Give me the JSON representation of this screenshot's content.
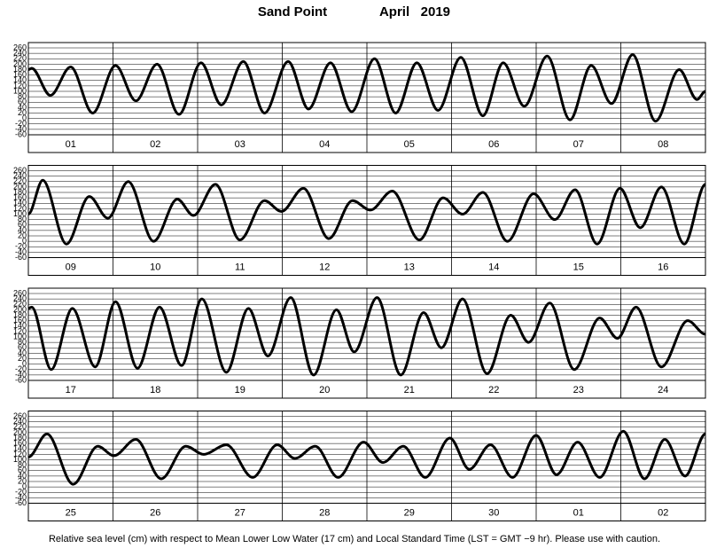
{
  "header": {
    "station": "Sand Point",
    "month": "April   2019"
  },
  "footnote": "Relative sea level (cm) with respect to Mean Lower Low Water (17 cm) and Local Standard Time (LST = GMT −9 hr). Please use with caution.",
  "chart_data": [
    {
      "type": "line",
      "categories": [
        "01",
        "02",
        "03",
        "04",
        "05",
        "06",
        "07",
        "08"
      ],
      "xlim": [
        0,
        8
      ],
      "ylim": [
        -60,
        260
      ],
      "yticks": [
        -60,
        -40,
        -20,
        0,
        20,
        40,
        60,
        80,
        100,
        120,
        140,
        160,
        180,
        200,
        220,
        240,
        260
      ],
      "grid": true,
      "color": "#000000",
      "x": [
        0,
        0.04,
        0.26,
        0.5,
        0.76,
        1.03,
        1.27,
        1.52,
        1.78,
        2.04,
        2.28,
        2.54,
        2.79,
        3.07,
        3.31,
        3.57,
        3.82,
        4.09,
        4.34,
        4.59,
        4.84,
        5.11,
        5.37,
        5.61,
        5.86,
        6.13,
        6.4,
        6.65,
        6.89,
        7.14,
        7.41,
        7.69,
        7.9,
        8
      ],
      "values": [
        180,
        185,
        85,
        190,
        20,
        195,
        65,
        200,
        15,
        205,
        50,
        210,
        20,
        210,
        35,
        205,
        25,
        220,
        20,
        205,
        30,
        225,
        10,
        205,
        45,
        230,
        -5,
        195,
        55,
        235,
        -10,
        180,
        70,
        100
      ]
    },
    {
      "type": "line",
      "categories": [
        "09",
        "10",
        "11",
        "12",
        "13",
        "14",
        "15",
        "16"
      ],
      "xlim": [
        0,
        8
      ],
      "ylim": [
        -60,
        260
      ],
      "yticks": [
        -60,
        -40,
        -20,
        0,
        20,
        40,
        60,
        80,
        100,
        120,
        140,
        160,
        180,
        200,
        220,
        240,
        260
      ],
      "grid": true,
      "color": "#000000",
      "x": [
        0,
        0.17,
        0.45,
        0.72,
        0.94,
        1.18,
        1.48,
        1.76,
        1.95,
        2.21,
        2.5,
        2.79,
        2.99,
        3.25,
        3.55,
        3.83,
        4.04,
        4.3,
        4.62,
        4.9,
        5.13,
        5.37,
        5.66,
        5.97,
        6.22,
        6.46,
        6.72,
        6.99,
        7.23,
        7.48,
        7.75,
        8
      ],
      "values": [
        100,
        225,
        -10,
        165,
        85,
        220,
        0,
        155,
        95,
        210,
        5,
        150,
        110,
        195,
        10,
        150,
        115,
        185,
        5,
        160,
        100,
        180,
        0,
        175,
        80,
        190,
        -10,
        195,
        50,
        200,
        -10,
        210
      ]
    },
    {
      "type": "line",
      "categories": [
        "17",
        "18",
        "19",
        "20",
        "21",
        "22",
        "23",
        "24"
      ],
      "xlim": [
        0,
        8
      ],
      "ylim": [
        -60,
        260
      ],
      "yticks": [
        -60,
        -40,
        -20,
        0,
        20,
        40,
        60,
        80,
        100,
        120,
        140,
        160,
        180,
        200,
        220,
        240,
        260
      ],
      "grid": true,
      "color": "#000000",
      "x": [
        0,
        0.04,
        0.27,
        0.52,
        0.79,
        1.03,
        1.29,
        1.55,
        1.81,
        2.05,
        2.34,
        2.6,
        2.83,
        3.1,
        3.37,
        3.64,
        3.85,
        4.12,
        4.4,
        4.67,
        4.88,
        5.13,
        5.42,
        5.7,
        5.91,
        6.16,
        6.45,
        6.75,
        6.96,
        7.18,
        7.48,
        7.79,
        8
      ],
      "values": [
        205,
        210,
        -20,
        205,
        -10,
        230,
        -15,
        210,
        -5,
        240,
        -30,
        205,
        30,
        245,
        -40,
        200,
        45,
        245,
        -40,
        190,
        60,
        240,
        -35,
        180,
        80,
        225,
        -20,
        170,
        95,
        210,
        -10,
        160,
        110
      ]
    },
    {
      "type": "line",
      "categories": [
        "25",
        "26",
        "27",
        "28",
        "29",
        "30",
        "01",
        "02"
      ],
      "xlim": [
        0,
        8
      ],
      "ylim": [
        -60,
        260
      ],
      "yticks": [
        -60,
        -40,
        -20,
        0,
        20,
        40,
        60,
        80,
        100,
        120,
        140,
        160,
        180,
        200,
        220,
        240,
        260
      ],
      "grid": true,
      "color": "#000000",
      "x": [
        0,
        0.22,
        0.53,
        0.82,
        1.01,
        1.27,
        1.57,
        1.86,
        2.07,
        2.34,
        2.65,
        2.94,
        3.15,
        3.39,
        3.66,
        3.96,
        4.19,
        4.43,
        4.69,
        4.98,
        5.21,
        5.46,
        5.72,
        6.0,
        6.24,
        6.49,
        6.75,
        7.03,
        7.28,
        7.52,
        7.76,
        8
      ],
      "values": [
        110,
        195,
        10,
        150,
        115,
        175,
        30,
        150,
        120,
        155,
        35,
        155,
        105,
        150,
        35,
        165,
        90,
        150,
        35,
        180,
        65,
        155,
        35,
        190,
        45,
        165,
        35,
        205,
        30,
        175,
        40,
        195
      ]
    }
  ]
}
